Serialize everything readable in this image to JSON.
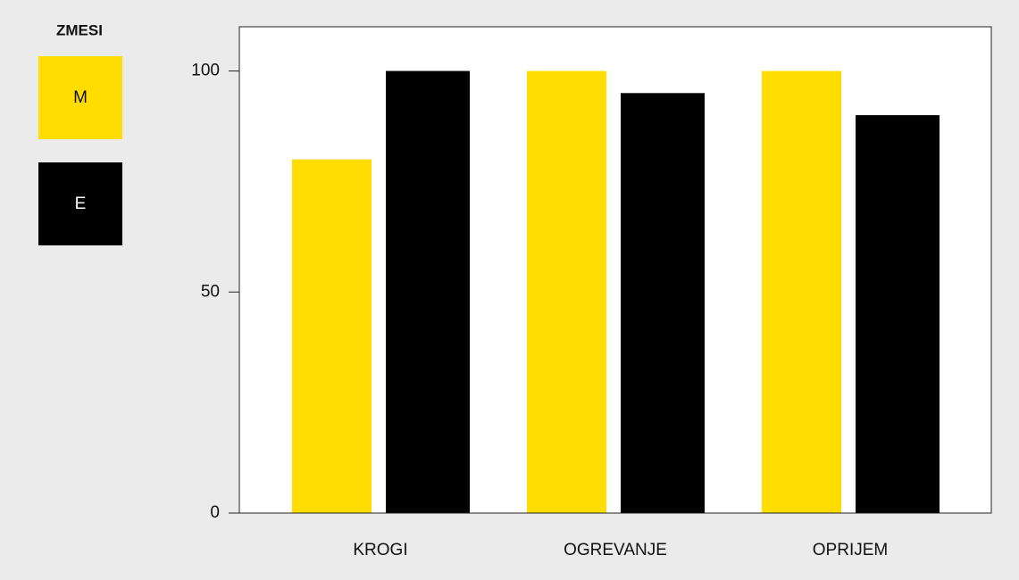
{
  "chart_data": {
    "type": "bar",
    "legend_title": "ZMESI",
    "categories": [
      "KROGI",
      "OGREVANJE",
      "OPRIJEM"
    ],
    "series": [
      {
        "name": "M",
        "color": "#ffdd00",
        "values": [
          80,
          100,
          100
        ]
      },
      {
        "name": "E",
        "color": "#000000",
        "values": [
          100,
          95,
          90
        ]
      }
    ],
    "ylim": [
      0,
      110
    ],
    "yticks": [
      0,
      50,
      100
    ],
    "legend": "left"
  }
}
